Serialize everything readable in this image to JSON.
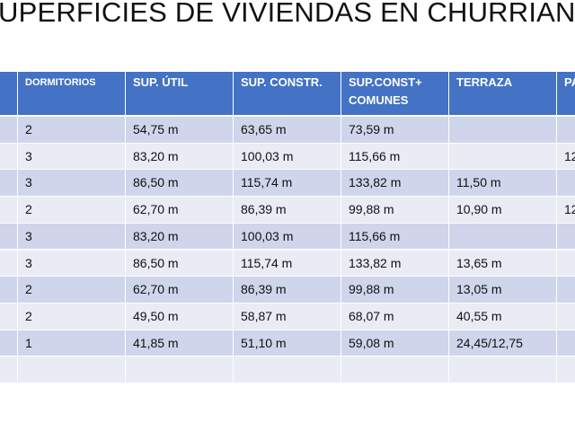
{
  "header": {
    "title": "UPERFICIES DE VIVIENDAS EN CHURRIAN"
  },
  "table": {
    "columns": [
      null,
      "DORMITORIOS",
      "SUP. ÚTIL",
      "SUP. CONSTR.",
      "SUP.CONST+ COMUNES",
      "TERRAZA",
      "PA"
    ],
    "rows": [
      [
        null,
        "2",
        "54,75 m",
        "63,65 m",
        "73,59 m",
        null,
        null
      ],
      [
        null,
        "3",
        "83,20 m",
        "100,03 m",
        "115,66 m",
        null,
        "12"
      ],
      [
        null,
        "3",
        "86,50 m",
        "115,74 m",
        "133,82 m",
        "11,50 m",
        null
      ],
      [
        null,
        "2",
        "62,70 m",
        "86,39 m",
        "99,88 m",
        "10,90 m",
        "12"
      ],
      [
        null,
        "3",
        "83,20 m",
        "100,03 m",
        "115,66 m",
        null,
        null
      ],
      [
        null,
        "3",
        "86,50 m",
        "115,74 m",
        "133,82 m",
        "13,65 m",
        null
      ],
      [
        null,
        "2",
        "62,70 m",
        "86,39 m",
        "99,88 m",
        "13,05 m",
        null
      ],
      [
        null,
        "2",
        "49,50 m",
        "58,87 m",
        "68,07 m",
        "40,55 m",
        null
      ],
      [
        null,
        "1",
        "41,85 m",
        "51,10 m",
        "59,08 m",
        "24,45/12,75",
        null
      ],
      [
        null,
        null,
        null,
        null,
        null,
        null,
        null
      ]
    ]
  }
}
